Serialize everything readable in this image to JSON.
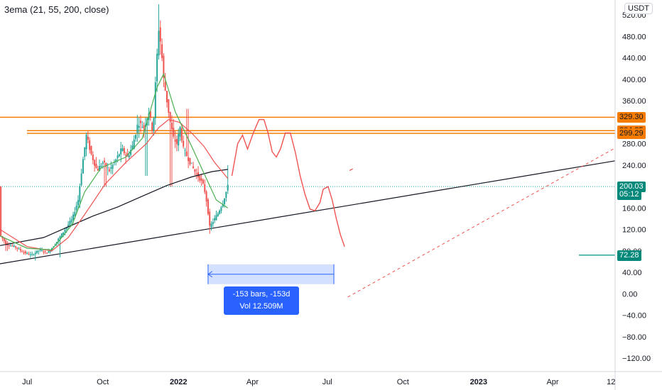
{
  "indicator": {
    "label": "3ema (21, 55, 200, close)"
  },
  "currency": "USDT",
  "measure": {
    "line1": "-153 bars, -153d",
    "line2": "Vol 12.509M"
  },
  "tags": [
    {
      "text": "329.30",
      "value": 329.3,
      "bg": "#f57c00",
      "fg": "#131722"
    },
    {
      "text": "304.35",
      "value": 304.35,
      "bg": "#f57c00",
      "fg": "#131722"
    },
    {
      "text": "299.29",
      "value": 299.29,
      "bg": "#f57c00",
      "fg": "#131722"
    },
    {
      "text": "200.03",
      "value": 200.03,
      "bg": "#00897b",
      "fg": "#ffffff"
    },
    {
      "text": "05:12",
      "value": 185.5,
      "bg": "#00897b",
      "fg": "#ffffff"
    },
    {
      "text": "72.28",
      "value": 72.28,
      "bg": "#00897b",
      "fg": "#ffffff"
    }
  ],
  "colors": {
    "up": "#26a69a",
    "down": "#ef5350",
    "ema_fast": "#4caf50",
    "ema_mid": "#ef5350",
    "ema_slow": "#131722",
    "level": "#f57c00",
    "projection": "#ef5350",
    "measure": "#2962ff"
  },
  "chart_data": {
    "type": "candlestick",
    "y_ticks": [
      520,
      480,
      440,
      400,
      360,
      280,
      240,
      160,
      120,
      80,
      40,
      0,
      -40,
      -80,
      -120
    ],
    "y_tick_labels": [
      "520.00",
      "480.00",
      "440.00",
      "400.00",
      "360.00",
      "280.00",
      "240.00",
      "160.00",
      "120.00",
      "80.00",
      "40.00",
      "0.00",
      "−40.00",
      "−80.00",
      "−120.00"
    ],
    "ylim": [
      -145,
      548
    ],
    "x_ticks": [
      {
        "label": "Jul",
        "day": 0,
        "bold": false
      },
      {
        "label": "Oct",
        "day": 92,
        "bold": false
      },
      {
        "label": "2022",
        "day": 184,
        "bold": true
      },
      {
        "label": "Apr",
        "day": 274,
        "bold": false
      },
      {
        "label": "Jul",
        "day": 365,
        "bold": false
      },
      {
        "label": "Oct",
        "day": 457,
        "bold": false
      },
      {
        "label": "2023",
        "day": 549,
        "bold": true
      },
      {
        "label": "Apr",
        "day": 639,
        "bold": false
      },
      {
        "label": "12",
        "day": 710,
        "bold": false
      }
    ],
    "xlim": [
      -33,
      715
    ],
    "horizontal_levels": [
      329.3,
      304.35,
      299.29
    ],
    "last_price_line": 200.03,
    "price_path": [
      [
        -33,
        110
      ],
      [
        -25,
        92
      ],
      [
        -15,
        88
      ],
      [
        -5,
        78
      ],
      [
        5,
        72
      ],
      [
        15,
        82
      ],
      [
        25,
        76
      ],
      [
        35,
        95
      ],
      [
        45,
        118
      ],
      [
        55,
        140
      ],
      [
        62,
        175
      ],
      [
        67,
        240
      ],
      [
        72,
        295
      ],
      [
        78,
        260
      ],
      [
        85,
        230
      ],
      [
        92,
        245
      ],
      [
        100,
        230
      ],
      [
        108,
        250
      ],
      [
        115,
        270
      ],
      [
        122,
        255
      ],
      [
        128,
        275
      ],
      [
        135,
        320
      ],
      [
        142,
        310
      ],
      [
        148,
        340
      ],
      [
        153,
        300
      ],
      [
        157,
        420
      ],
      [
        160,
        495
      ],
      [
        163,
        460
      ],
      [
        166,
        400
      ],
      [
        170,
        360
      ],
      [
        174,
        320
      ],
      [
        178,
        290
      ],
      [
        182,
        280
      ],
      [
        186,
        310
      ],
      [
        190,
        270
      ],
      [
        195,
        255
      ],
      [
        200,
        240
      ],
      [
        205,
        225
      ],
      [
        210,
        215
      ],
      [
        215,
        200
      ],
      [
        219,
        165
      ],
      [
        222,
        125
      ],
      [
        226,
        135
      ],
      [
        232,
        150
      ],
      [
        238,
        170
      ],
      [
        244,
        200
      ]
    ],
    "lows": [
      [
        -25,
        80
      ],
      [
        10,
        62
      ],
      [
        40,
        68
      ],
      [
        95,
        200
      ],
      [
        145,
        220
      ],
      [
        175,
        200
      ],
      [
        222,
        112
      ]
    ],
    "highs": [
      [
        72,
        300
      ],
      [
        160,
        540
      ],
      [
        195,
        345
      ],
      [
        244,
        240
      ]
    ],
    "ema_fast": [
      [
        -33,
        108
      ],
      [
        0,
        85
      ],
      [
        30,
        82
      ],
      [
        55,
        130
      ],
      [
        70,
        190
      ],
      [
        90,
        235
      ],
      [
        120,
        255
      ],
      [
        140,
        290
      ],
      [
        158,
        385
      ],
      [
        166,
        410
      ],
      [
        180,
        340
      ],
      [
        200,
        275
      ],
      [
        215,
        225
      ],
      [
        230,
        175
      ],
      [
        244,
        160
      ]
    ],
    "ema_mid": [
      [
        -33,
        120
      ],
      [
        0,
        88
      ],
      [
        30,
        80
      ],
      [
        50,
        105
      ],
      [
        70,
        148
      ],
      [
        95,
        205
      ],
      [
        120,
        245
      ],
      [
        145,
        280
      ],
      [
        160,
        310
      ],
      [
        172,
        325
      ],
      [
        185,
        320
      ],
      [
        200,
        300
      ],
      [
        215,
        275
      ],
      [
        228,
        245
      ],
      [
        244,
        215
      ]
    ],
    "ema_slow": [
      [
        -33,
        90
      ],
      [
        20,
        105
      ],
      [
        50,
        125
      ],
      [
        80,
        145
      ],
      [
        110,
        162
      ],
      [
        140,
        182
      ],
      [
        170,
        202
      ],
      [
        200,
        218
      ],
      [
        225,
        228
      ],
      [
        244,
        232
      ]
    ],
    "projection_curve": [
      [
        249,
        220
      ],
      [
        256,
        280
      ],
      [
        262,
        296
      ],
      [
        268,
        270
      ],
      [
        275,
        300
      ],
      [
        282,
        325
      ],
      [
        288,
        325
      ],
      [
        293,
        300
      ],
      [
        298,
        265
      ],
      [
        303,
        255
      ],
      [
        308,
        270
      ],
      [
        314,
        300
      ],
      [
        320,
        300
      ],
      [
        326,
        265
      ],
      [
        332,
        220
      ],
      [
        338,
        185
      ],
      [
        344,
        158
      ],
      [
        350,
        155
      ],
      [
        356,
        170
      ],
      [
        360,
        195
      ],
      [
        366,
        200
      ],
      [
        371,
        175
      ],
      [
        376,
        140
      ],
      [
        381,
        110
      ],
      [
        386,
        88
      ]
    ],
    "trendline": {
      "from": [
        -33,
        56
      ],
      "to": [
        715,
        248
      ]
    },
    "trendline2": {
      "from": [
        390,
        -6
      ],
      "to": [
        715,
        272
      ]
    },
    "measure_range": {
      "from_day": 220,
      "to_day": 373,
      "top": 55,
      "bottom": 18
    }
  }
}
